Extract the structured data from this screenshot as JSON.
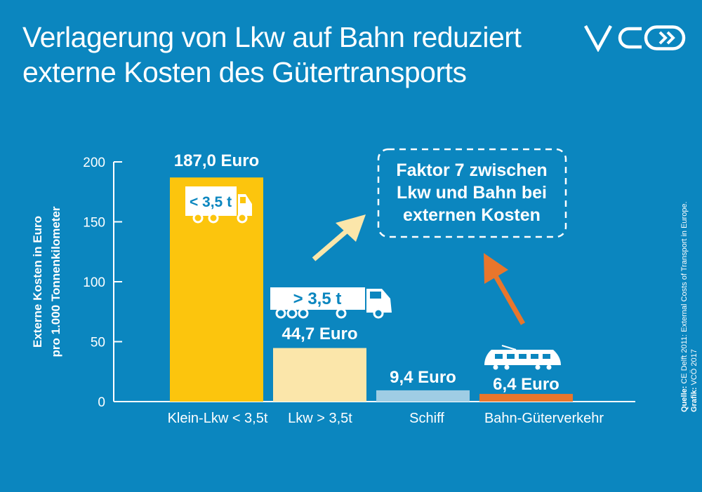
{
  "title": {
    "line1": "Verlagerung von Lkw auf Bahn reduziert",
    "line2": "externe Kosten des Gütertransports"
  },
  "logo": {
    "text": "VCÖ"
  },
  "chart_data": {
    "type": "bar",
    "ylabel_line1": "Externe Kosten in Euro",
    "ylabel_line2": "pro 1.000 Tonnenkilometer",
    "ylim": [
      0,
      200
    ],
    "yticks": [
      0,
      50,
      100,
      150,
      200
    ],
    "categories": [
      "Klein-Lkw < 3,5t",
      "Lkw > 3,5t",
      "Schiff",
      "Bahn-Güterverkehr"
    ],
    "values": [
      187.0,
      44.7,
      9.4,
      6.4
    ],
    "value_labels": [
      "187,0 Euro",
      "44,7 Euro",
      "9,4 Euro",
      "6,4 Euro"
    ],
    "colors": [
      "#fcc50d",
      "#fbe6aa",
      "#9fcde4",
      "#e8762c"
    ],
    "icons": [
      {
        "name": "small-truck-icon",
        "label": "< 3,5 t"
      },
      {
        "name": "large-truck-icon",
        "label": "> 3,5 t"
      },
      null,
      {
        "name": "train-icon",
        "label": ""
      }
    ],
    "annotation": {
      "lines": [
        "Faktor 7 zwischen",
        "Lkw und Bahn bei",
        "externen Kosten"
      ]
    },
    "grid": false
  },
  "source": {
    "label1": "Quelle:",
    "text1": " CE Delft 2011: External Costs of Transport in Europe.",
    "label2": "Grafik:",
    "text2": " VCÖ 2017"
  }
}
